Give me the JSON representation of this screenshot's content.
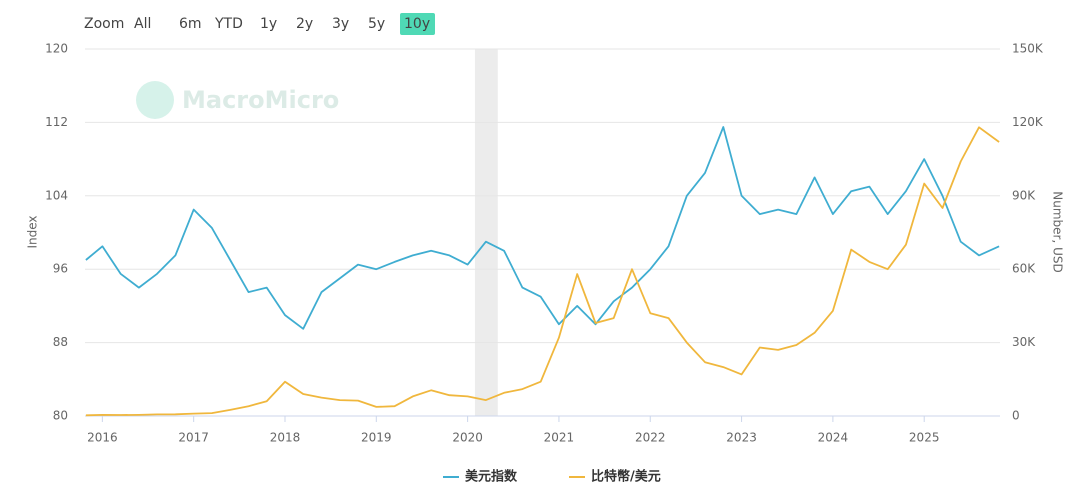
{
  "range_selector": {
    "label": "Zoom",
    "buttons": [
      "All",
      "6m",
      "YTD",
      "1y",
      "2y",
      "3y",
      "5y",
      "10y"
    ],
    "active": "10y"
  },
  "logo": "MacroMicro",
  "chart_data": {
    "type": "line",
    "y_label": "Index",
    "y2_label": "Number, USD",
    "x": [
      2015.82,
      2016.0,
      2016.2,
      2016.4,
      2016.6,
      2016.8,
      2017.0,
      2017.2,
      2017.4,
      2017.6,
      2017.8,
      2018.0,
      2018.2,
      2018.4,
      2018.6,
      2018.8,
      2019.0,
      2019.2,
      2019.4,
      2019.6,
      2019.8,
      2020.0,
      2020.2,
      2020.4,
      2020.6,
      2020.8,
      2021.0,
      2021.2,
      2021.4,
      2021.6,
      2021.8,
      2022.0,
      2022.2,
      2022.4,
      2022.6,
      2022.8,
      2023.0,
      2023.2,
      2023.4,
      2023.6,
      2023.8,
      2024.0,
      2024.2,
      2024.4,
      2024.6,
      2024.8,
      2025.0,
      2025.2,
      2025.4,
      2025.6,
      2025.82
    ],
    "series": [
      {
        "name": "美元指数",
        "color": "#3fadd1",
        "axis": "y",
        "values": [
          97,
          98.5,
          95.5,
          94,
          95.5,
          97.5,
          102.5,
          100.5,
          97,
          93.5,
          94,
          91,
          89.5,
          93.5,
          95,
          96.5,
          96,
          96.8,
          97.5,
          98,
          97.5,
          96.5,
          99,
          98,
          94,
          93,
          90,
          92,
          90,
          92.5,
          94,
          96,
          98.5,
          104,
          106.5,
          111.5,
          104,
          102,
          102.5,
          102,
          106,
          102,
          104.5,
          105,
          102,
          104.5,
          108,
          104,
          99,
          97.5,
          98.5
        ]
      },
      {
        "name": "比特幣/美元",
        "color": "#f0b73d",
        "axis": "y2",
        "values": [
          300,
          430,
          420,
          450,
          650,
          700,
          1000,
          1200,
          2500,
          4000,
          6000,
          14000,
          9000,
          7500,
          6500,
          6300,
          3700,
          4000,
          8000,
          10500,
          8500,
          8000,
          6500,
          9500,
          11000,
          14000,
          32000,
          58000,
          38000,
          40000,
          60000,
          42000,
          40000,
          30000,
          22000,
          20000,
          17000,
          28000,
          27000,
          29000,
          34000,
          43000,
          68000,
          63000,
          60000,
          70000,
          95000,
          85000,
          104000,
          118000,
          112000
        ]
      }
    ],
    "xlim": [
      2015.81,
      2025.83
    ],
    "xticks": [
      2016,
      2017,
      2018,
      2019,
      2020,
      2021,
      2022,
      2023,
      2024,
      2025
    ],
    "ylim": [
      80,
      120
    ],
    "yticks": [
      80,
      88,
      96,
      104,
      112,
      120
    ],
    "y2lim": [
      0,
      150000
    ],
    "y2ticks": [
      0,
      {
        "value": 30000,
        "label": "30K"
      },
      {
        "value": 60000,
        "label": "60K"
      },
      {
        "value": 90000,
        "label": "90K"
      },
      {
        "value": 120000,
        "label": "120K"
      },
      {
        "value": 150000,
        "label": "150K"
      }
    ],
    "highlight_x": [
      2020.08,
      2020.33
    ],
    "grid": true
  }
}
